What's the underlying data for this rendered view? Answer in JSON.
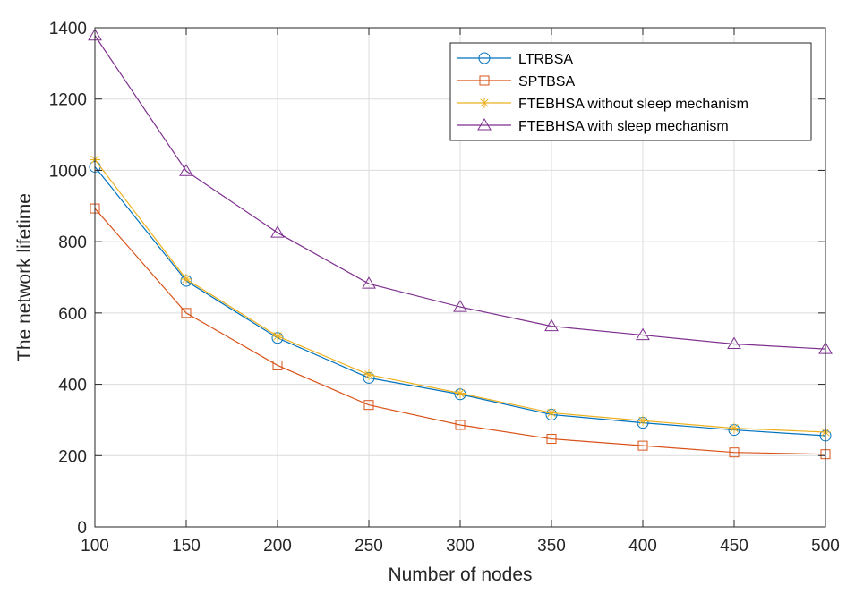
{
  "chart_data": {
    "type": "line",
    "title": "",
    "xlabel": "Number of nodes",
    "ylabel": "The network lifetime",
    "x": [
      100,
      150,
      200,
      250,
      300,
      350,
      400,
      450,
      500
    ],
    "xlim": [
      100,
      500
    ],
    "ylim": [
      0,
      1400
    ],
    "xticks": [
      100,
      150,
      200,
      250,
      300,
      350,
      400,
      450,
      500
    ],
    "yticks": [
      0,
      200,
      400,
      600,
      800,
      1000,
      1200,
      1400
    ],
    "grid": true,
    "legend_position": "top-right",
    "series": [
      {
        "name": "LTRBSA",
        "marker": "circle",
        "color": "#0072BD",
        "values": [
          1010,
          690,
          530,
          418,
          372,
          315,
          292,
          272,
          256
        ]
      },
      {
        "name": "SPTBSA",
        "marker": "square",
        "color": "#D95319",
        "values": [
          893,
          600,
          453,
          342,
          286,
          247,
          228,
          209,
          204
        ]
      },
      {
        "name": "FTEBHSA without sleep mechanism",
        "marker": "asterisk",
        "color": "#EDB120",
        "values": [
          1030,
          695,
          535,
          427,
          375,
          320,
          298,
          277,
          266
        ]
      },
      {
        "name": "FTEBHSA with sleep mechanism",
        "marker": "triangle",
        "color": "#7E2F8E",
        "values": [
          1378,
          998,
          825,
          682,
          617,
          563,
          538,
          513,
          499
        ]
      }
    ]
  }
}
